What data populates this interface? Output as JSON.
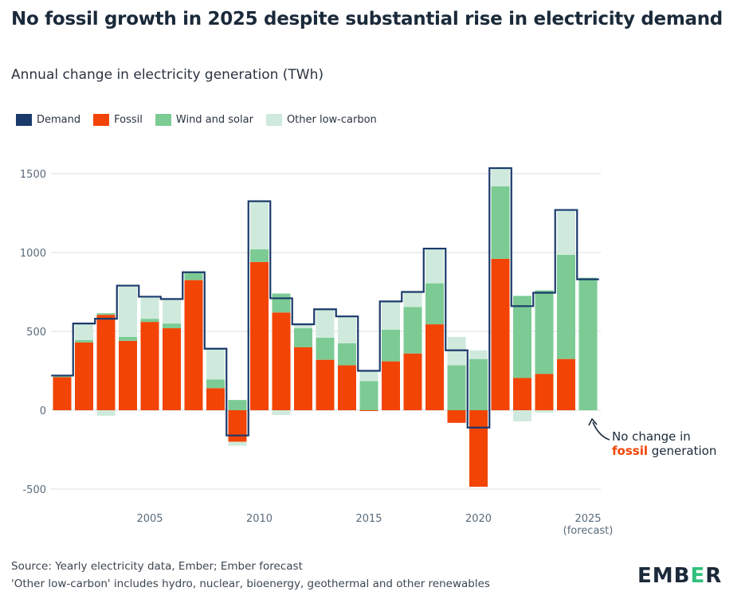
{
  "title": "No fossil growth in 2025 despite substantial rise in electricity demand",
  "subtitle": "Annual change in electricity generation (TWh)",
  "annotation": {
    "line1": "No change in",
    "highlight": "fossil",
    "rest": " generation"
  },
  "footer": {
    "source": "Source: Yearly electricity data, Ember; Ember forecast",
    "note": "'Other low-carbon' includes hydro, nuclear, bioenergy, geothermal and other renewables"
  },
  "logo": {
    "text_before": "EMB",
    "accent": "E",
    "text_after": "R"
  },
  "colors": {
    "demand": "#1a3a6b",
    "fossil": "#f24405",
    "wind_solar": "#7ccb94",
    "other_low_carbon": "#cfeadc",
    "grid": "#d8dde3",
    "axis_text": "#5a6b7b"
  },
  "chart_data": {
    "type": "bar",
    "stacked": true,
    "x": [
      2001,
      2002,
      2003,
      2004,
      2005,
      2006,
      2007,
      2008,
      2009,
      2010,
      2011,
      2012,
      2013,
      2014,
      2015,
      2016,
      2017,
      2018,
      2019,
      2020,
      2021,
      2022,
      2023,
      2024,
      2025
    ],
    "x_tick_labels": [
      {
        "x": 2005,
        "label": "2005"
      },
      {
        "x": 2010,
        "label": "2010"
      },
      {
        "x": 2015,
        "label": "2015"
      },
      {
        "x": 2020,
        "label": "2020"
      },
      {
        "x": 2025,
        "label": "2025",
        "sublabel": "(forecast)"
      }
    ],
    "ylim": [
      -530,
      1560
    ],
    "yticks": [
      -500,
      0,
      500,
      1000,
      1500
    ],
    "grid": true,
    "legend_position": "top-left",
    "series": [
      {
        "name": "Fossil",
        "color_key": "fossil",
        "values": [
          210,
          430,
          605,
          440,
          560,
          520,
          825,
          140,
          -200,
          940,
          620,
          400,
          320,
          285,
          -5,
          310,
          360,
          545,
          -80,
          -485,
          960,
          205,
          230,
          325,
          0
        ]
      },
      {
        "name": "Wind and solar",
        "color_key": "wind_solar",
        "values": [
          5,
          15,
          10,
          25,
          20,
          30,
          45,
          55,
          65,
          80,
          120,
          120,
          140,
          140,
          185,
          200,
          295,
          260,
          285,
          325,
          460,
          520,
          530,
          660,
          840
        ]
      },
      {
        "name": "Other low-carbon",
        "color_key": "other_low_carbon",
        "values": [
          0,
          100,
          -35,
          320,
          140,
          150,
          0,
          195,
          -25,
          300,
          -30,
          20,
          180,
          170,
          70,
          180,
          90,
          220,
          180,
          55,
          110,
          -70,
          -15,
          280,
          0
        ]
      }
    ],
    "demand": {
      "name": "Demand",
      "color_key": "demand",
      "values": [
        220,
        550,
        580,
        790,
        720,
        705,
        875,
        390,
        -160,
        1325,
        710,
        545,
        640,
        595,
        250,
        690,
        750,
        1025,
        380,
        -110,
        1535,
        660,
        745,
        1270,
        830
      ]
    }
  }
}
